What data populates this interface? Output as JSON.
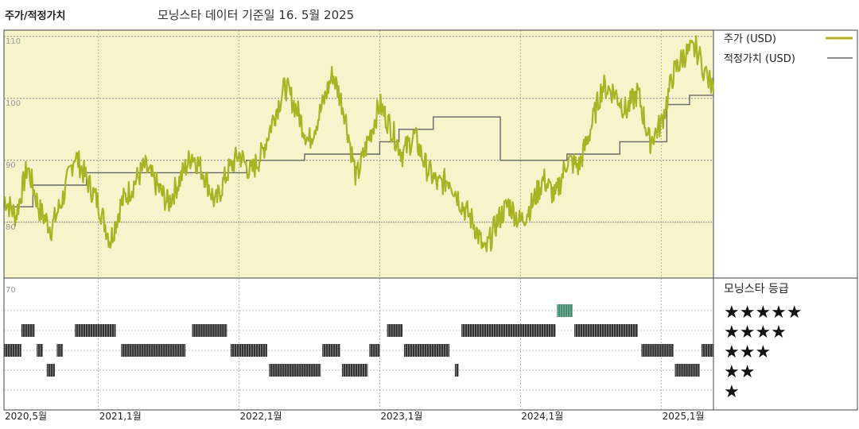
{
  "header": {
    "title": "주가/적정가치",
    "subtitle": "모닝스타 데이터 기준일 16. 5월 2025"
  },
  "legend": {
    "price": "주가 (USD)",
    "fair_value": "적정가치 (USD)",
    "rating_title": "모닝스타 등급"
  },
  "colors": {
    "price_line": "#a8b424",
    "fair_value_line": "#666666",
    "upper_bg": "#f7f4cc",
    "rating_bar": "#333333",
    "rating_highlight": "#3f8a6e"
  },
  "chart_data": [
    {
      "type": "line",
      "title": "",
      "x_axis": "date",
      "x_range": [
        "2020-05-01",
        "2025-05-16"
      ],
      "y_range": [
        71,
        111
      ],
      "y_ticks": [
        "110",
        "100",
        "90",
        "80"
      ],
      "x_ticks": [
        "2020,5월",
        "2021,1월",
        "2022,1월",
        "2023,1월",
        "2024,1월",
        "2025,1월"
      ],
      "series": [
        {
          "name": "주가 (USD)",
          "points": [
            [
              "2020-05-01",
              84
            ],
            [
              "2020-06-01",
              81
            ],
            [
              "2020-07-01",
              89
            ],
            [
              "2020-08-01",
              82
            ],
            [
              "2020-09-01",
              79
            ],
            [
              "2020-10-01",
              84
            ],
            [
              "2020-11-01",
              91
            ],
            [
              "2020-12-01",
              87
            ],
            [
              "2021-01-01",
              83
            ],
            [
              "2021-02-01",
              77
            ],
            [
              "2021-03-01",
              83
            ],
            [
              "2021-04-01",
              86
            ],
            [
              "2021-05-01",
              89
            ],
            [
              "2021-06-01",
              86
            ],
            [
              "2021-07-01",
              83
            ],
            [
              "2021-08-01",
              87
            ],
            [
              "2021-09-01",
              91
            ],
            [
              "2021-10-01",
              88
            ],
            [
              "2021-11-01",
              83
            ],
            [
              "2021-12-01",
              88
            ],
            [
              "2022-01-01",
              91
            ],
            [
              "2022-02-01",
              88
            ],
            [
              "2022-03-01",
              91
            ],
            [
              "2022-04-01",
              97
            ],
            [
              "2022-05-01",
              102
            ],
            [
              "2022-06-01",
              98
            ],
            [
              "2022-07-01",
              93
            ],
            [
              "2022-08-01",
              98
            ],
            [
              "2022-09-01",
              104
            ],
            [
              "2022-10-01",
              98
            ],
            [
              "2022-11-01",
              87
            ],
            [
              "2022-12-01",
              93
            ],
            [
              "2023-01-01",
              99
            ],
            [
              "2023-02-01",
              95
            ],
            [
              "2023-03-01",
              91
            ],
            [
              "2023-04-01",
              94
            ],
            [
              "2023-05-01",
              89
            ],
            [
              "2023-06-01",
              86
            ],
            [
              "2023-07-01",
              87
            ],
            [
              "2023-08-01",
              83
            ],
            [
              "2023-09-01",
              80
            ],
            [
              "2023-10-01",
              75
            ],
            [
              "2023-11-01",
              80
            ],
            [
              "2023-12-01",
              83
            ],
            [
              "2024-01-01",
              80
            ],
            [
              "2024-02-01",
              83
            ],
            [
              "2024-03-01",
              87
            ],
            [
              "2024-04-01",
              84
            ],
            [
              "2024-05-01",
              90
            ],
            [
              "2024-06-01",
              89
            ],
            [
              "2024-07-01",
              95
            ],
            [
              "2024-08-01",
              102
            ],
            [
              "2024-09-01",
              101
            ],
            [
              "2024-10-01",
              98
            ],
            [
              "2024-11-01",
              101
            ],
            [
              "2024-12-01",
              93
            ],
            [
              "2025-01-01",
              96
            ],
            [
              "2025-02-01",
              104
            ],
            [
              "2025-03-01",
              107
            ],
            [
              "2025-04-01",
              108
            ],
            [
              "2025-05-16",
              101
            ]
          ]
        },
        {
          "name": "적정가치 (USD)",
          "step": true,
          "points": [
            [
              "2020-05-01",
              82.5
            ],
            [
              "2020-07-15",
              86
            ],
            [
              "2020-12-01",
              88
            ],
            [
              "2021-12-01",
              88
            ],
            [
              "2022-01-20",
              90
            ],
            [
              "2022-06-20",
              91
            ],
            [
              "2023-01-01",
              93
            ],
            [
              "2023-02-20",
              95
            ],
            [
              "2023-05-20",
              97
            ],
            [
              "2023-11-10",
              90
            ],
            [
              "2024-05-01",
              91
            ],
            [
              "2024-09-15",
              93
            ],
            [
              "2024-12-15",
              93
            ],
            [
              "2025-01-15",
              99
            ],
            [
              "2025-03-15",
              100.5
            ],
            [
              "2025-05-16",
              100.5
            ]
          ]
        }
      ]
    },
    {
      "type": "heatmap",
      "title": "모닝스타 등급",
      "rows": [
        "★★★★★",
        "★★★★",
        "★★★",
        "★★",
        "★"
      ],
      "periods": [
        {
          "rating": 3,
          "start": "2020-05-01",
          "end": "2020-06-15"
        },
        {
          "rating": 4,
          "start": "2020-06-15",
          "end": "2020-07-20"
        },
        {
          "rating": 3,
          "start": "2020-07-25",
          "end": "2020-08-10"
        },
        {
          "rating": 2,
          "start": "2020-08-20",
          "end": "2020-09-10"
        },
        {
          "rating": 3,
          "start": "2020-09-15",
          "end": "2020-10-01"
        },
        {
          "rating": 4,
          "start": "2020-11-01",
          "end": "2021-02-15"
        },
        {
          "rating": 3,
          "start": "2021-03-01",
          "end": "2021-08-15"
        },
        {
          "rating": 4,
          "start": "2021-09-01",
          "end": "2021-12-01"
        },
        {
          "rating": 3,
          "start": "2021-12-10",
          "end": "2022-03-15"
        },
        {
          "rating": 2,
          "start": "2022-03-20",
          "end": "2022-08-01"
        },
        {
          "rating": 3,
          "start": "2022-08-05",
          "end": "2022-09-20"
        },
        {
          "rating": 2,
          "start": "2022-09-25",
          "end": "2022-12-01"
        },
        {
          "rating": 3,
          "start": "2022-12-05",
          "end": "2023-01-01"
        },
        {
          "rating": 4,
          "start": "2023-01-20",
          "end": "2023-03-01"
        },
        {
          "rating": 3,
          "start": "2023-03-05",
          "end": "2023-07-01"
        },
        {
          "rating": 2,
          "start": "2023-07-15",
          "end": "2023-07-25"
        },
        {
          "rating": 4,
          "start": "2023-08-01",
          "end": "2024-04-01"
        },
        {
          "rating": 5,
          "start": "2024-04-05",
          "end": "2024-05-15"
        },
        {
          "rating": 4,
          "start": "2024-05-20",
          "end": "2024-11-01"
        },
        {
          "rating": 3,
          "start": "2024-11-10",
          "end": "2025-02-01"
        },
        {
          "rating": 2,
          "start": "2025-02-05",
          "end": "2025-04-10"
        },
        {
          "rating": 3,
          "start": "2025-04-15",
          "end": "2025-05-16"
        }
      ]
    }
  ]
}
